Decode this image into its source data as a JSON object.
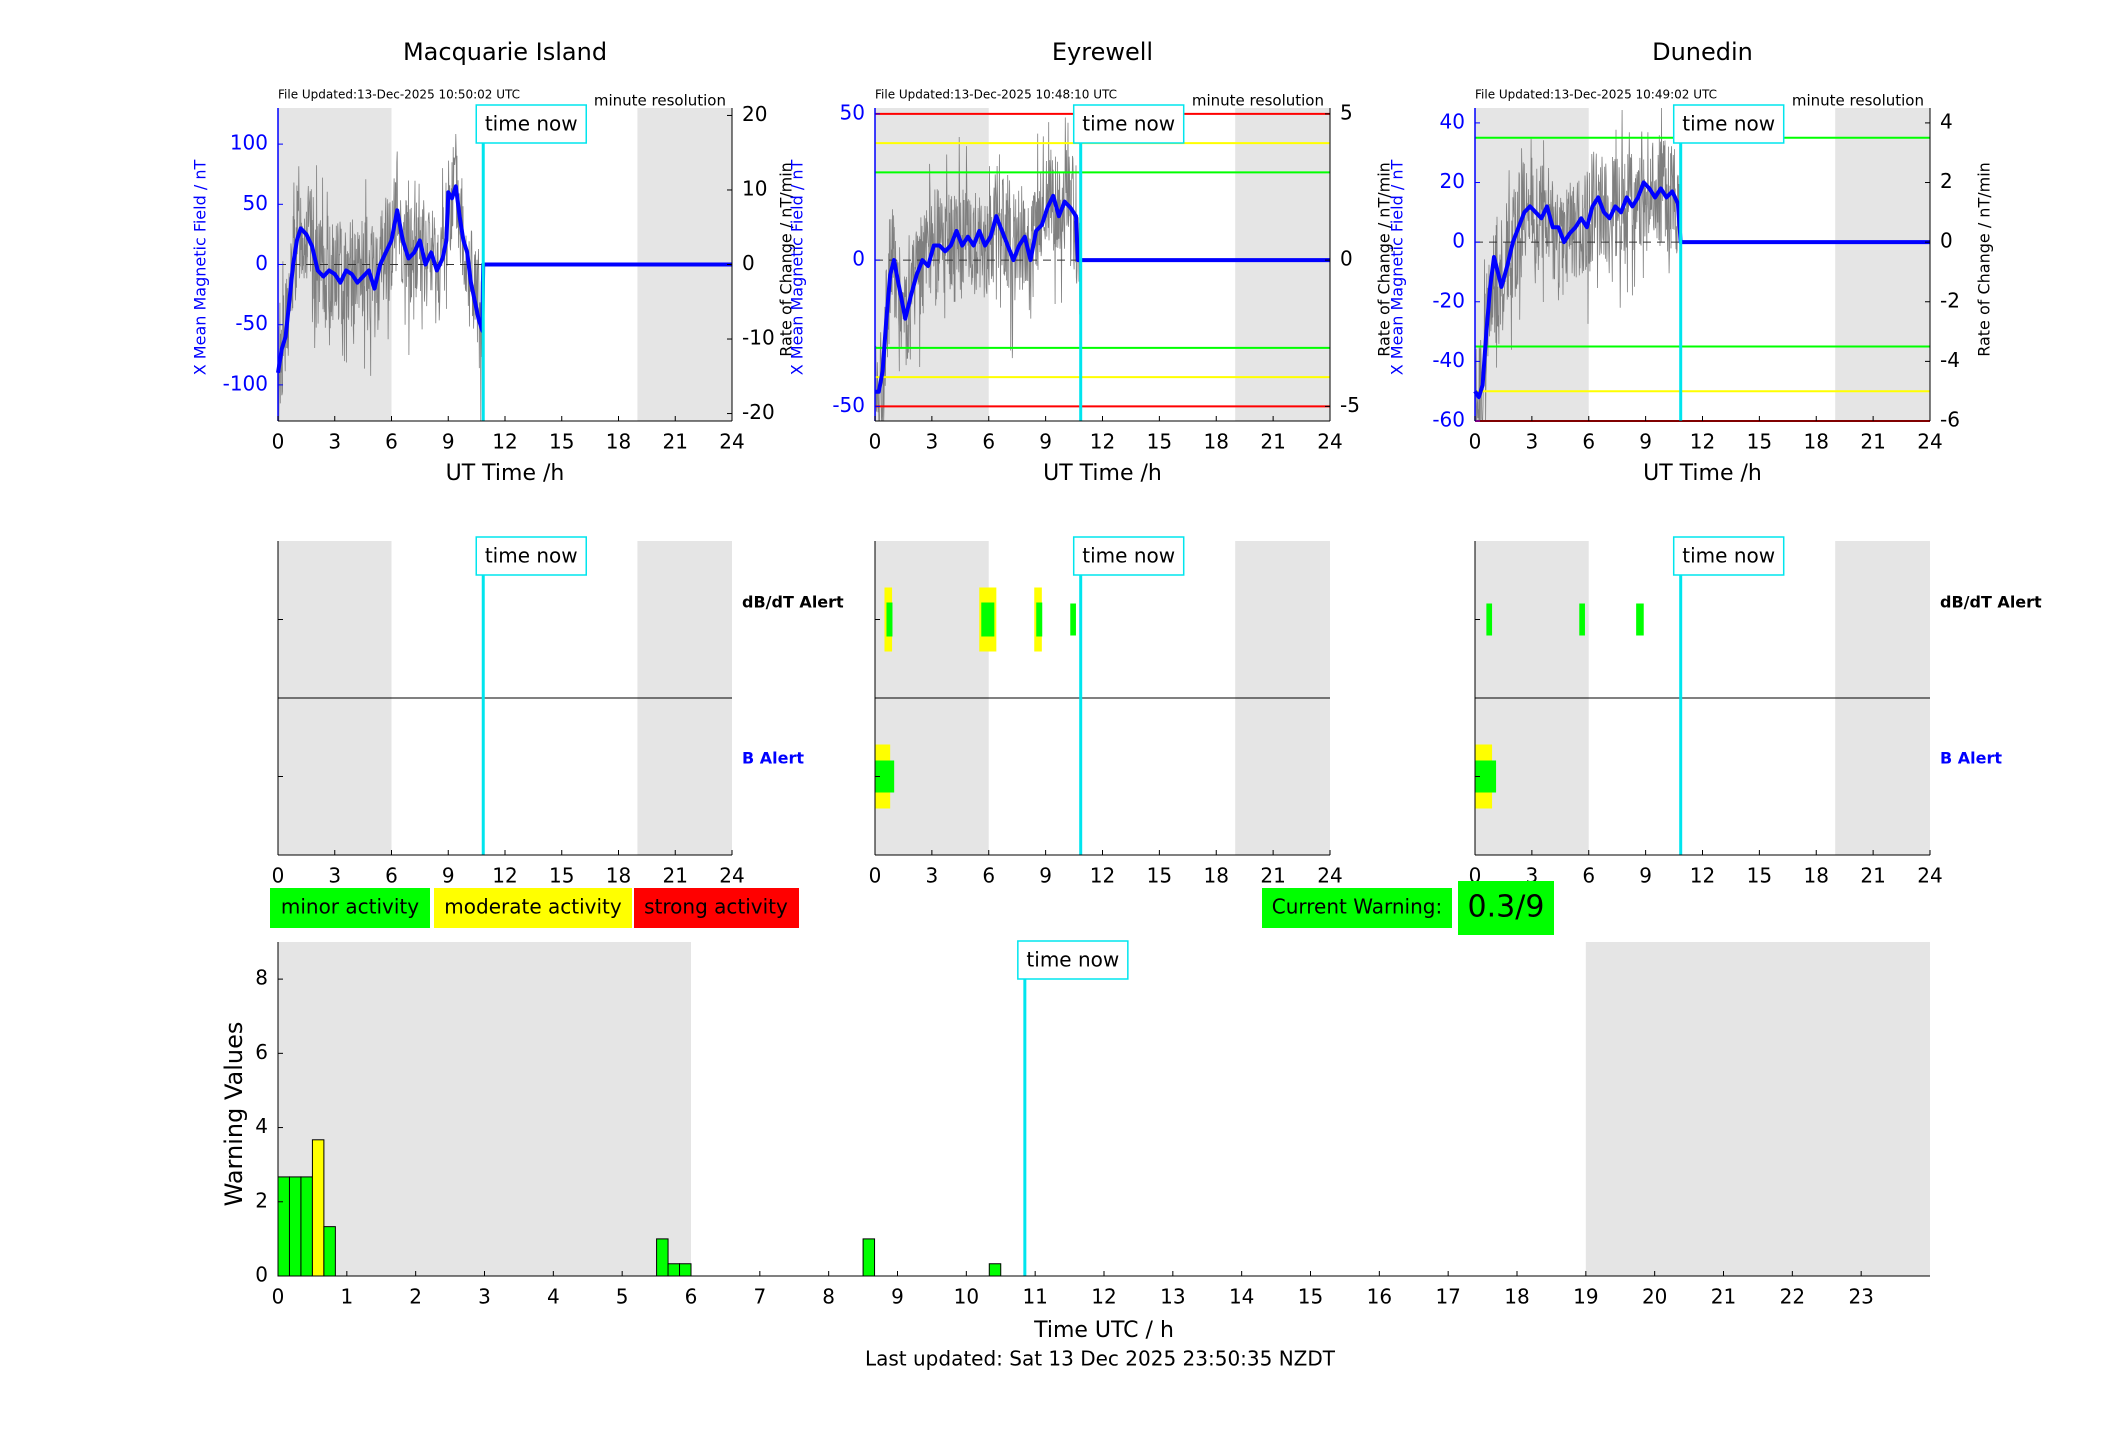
{
  "colors": {
    "blue": "#0000ff",
    "cyan": "#00e5ee",
    "green": "#00ff00",
    "yellow": "#ffff00",
    "red": "#ff0000",
    "night_shade": "#e5e5e5",
    "raw_trace": "#7f7f7f"
  },
  "common": {
    "time_now_label": "time now",
    "file_updated_prefix": "File Updated:",
    "resolution_label": "minute resolution",
    "x_axis_label": "UT Time /h",
    "left_axis_label": "X Mean Magnetic Field / nT",
    "right_axis_label": "Rate of Change / nT/min",
    "x_ticks": [
      "0",
      "3",
      "6",
      "9",
      "12",
      "15",
      "18",
      "21",
      "24"
    ],
    "dbdt_alert_label": "dB/dT Alert",
    "b_alert_label": "B Alert"
  },
  "legend": {
    "minor": "minor activity",
    "moderate": "moderate activity",
    "strong": "strong activity"
  },
  "current_warning": {
    "label": "Current Warning:",
    "value": "0.3/9"
  },
  "footer": {
    "last_updated": "Last updated: Sat 13 Dec 2025 23:50:35 NZDT"
  },
  "chart_data": [
    {
      "type": "line",
      "title": "Macquarie Island",
      "file_updated": "13-Dec-2025 10:50:02 UTC",
      "xlabel": "UT Time /h",
      "xlim": [
        0,
        24
      ],
      "ylim": [
        -130,
        130
      ],
      "y_ticks": [
        -100,
        -50,
        0,
        50,
        100
      ],
      "y2lim": [
        -21,
        21
      ],
      "y2_ticks": [
        -20,
        -10,
        0,
        10,
        20
      ],
      "now_hour": 10.85,
      "night_shading": [
        [
          0,
          6
        ],
        [
          19,
          24
        ]
      ],
      "thresholds": [],
      "mean_field_nT": {
        "hours": [
          0,
          0.2,
          0.4,
          0.6,
          0.8,
          1.0,
          1.2,
          1.5,
          1.8,
          2.1,
          2.4,
          2.7,
          3.0,
          3.3,
          3.6,
          3.9,
          4.2,
          4.5,
          4.8,
          5.1,
          5.4,
          5.7,
          6.0,
          6.3,
          6.6,
          6.9,
          7.2,
          7.5,
          7.8,
          8.1,
          8.4,
          8.7,
          8.9,
          9.0,
          9.2,
          9.4,
          9.6,
          9.8,
          10.0,
          10.2,
          10.4,
          10.6,
          10.8
        ],
        "values": [
          -90,
          -70,
          -60,
          -30,
          0,
          20,
          30,
          25,
          15,
          -5,
          -10,
          -5,
          -8,
          -15,
          -5,
          -8,
          -15,
          -10,
          -5,
          -20,
          0,
          10,
          20,
          45,
          20,
          5,
          10,
          20,
          0,
          10,
          -5,
          5,
          20,
          60,
          55,
          65,
          40,
          20,
          10,
          -15,
          -30,
          -45,
          -55
        ],
        "after_now_value": 0
      },
      "dbdt_alerts": [],
      "b_alerts": []
    },
    {
      "type": "line",
      "title": "Eyrewell",
      "file_updated": "13-Dec-2025 10:48:10 UTC",
      "xlabel": "UT Time /h",
      "xlim": [
        0,
        24
      ],
      "ylim": [
        -55,
        52
      ],
      "y_ticks": [
        -50,
        0,
        50
      ],
      "y2lim": [
        -5.5,
        5.2
      ],
      "y2_ticks": [
        -5,
        0,
        5
      ],
      "now_hour": 10.85,
      "night_shading": [
        [
          0,
          6
        ],
        [
          19,
          24
        ]
      ],
      "thresholds": [
        {
          "value": 50,
          "color": "red"
        },
        {
          "value": 40,
          "color": "yellow"
        },
        {
          "value": 30,
          "color": "green"
        },
        {
          "value": -30,
          "color": "green"
        },
        {
          "value": -40,
          "color": "yellow"
        },
        {
          "value": -50,
          "color": "red"
        }
      ],
      "mean_field_nT": {
        "hours": [
          0,
          0.2,
          0.4,
          0.6,
          0.8,
          1.0,
          1.3,
          1.6,
          1.9,
          2.2,
          2.5,
          2.8,
          3.1,
          3.4,
          3.7,
          4.0,
          4.3,
          4.6,
          4.9,
          5.2,
          5.5,
          5.8,
          6.1,
          6.4,
          6.7,
          7.0,
          7.3,
          7.6,
          7.9,
          8.2,
          8.5,
          8.8,
          9.1,
          9.4,
          9.7,
          10.0,
          10.3,
          10.6,
          10.7
        ],
        "values": [
          -45,
          -45,
          -38,
          -20,
          -5,
          0,
          -10,
          -20,
          -12,
          -5,
          0,
          -2,
          5,
          5,
          3,
          5,
          10,
          5,
          8,
          5,
          10,
          5,
          8,
          15,
          10,
          5,
          0,
          5,
          8,
          0,
          10,
          12,
          18,
          22,
          15,
          20,
          18,
          15,
          0
        ],
        "after_now_value": 0
      },
      "dbdt_alerts": [
        {
          "start": 0.5,
          "end": 0.9,
          "level": "moderate"
        },
        {
          "start": 5.5,
          "end": 6.4,
          "level": "moderate"
        },
        {
          "start": 8.4,
          "end": 8.8,
          "level": "moderate"
        },
        {
          "start": 10.3,
          "end": 10.6,
          "level": "minor"
        }
      ],
      "b_alerts": [
        {
          "start": 0,
          "end": 0.8,
          "level": "moderate"
        }
      ]
    },
    {
      "type": "line",
      "title": "Dunedin",
      "file_updated": "13-Dec-2025 10:49:02 UTC",
      "xlabel": "UT Time /h",
      "xlim": [
        0,
        24
      ],
      "ylim": [
        -60,
        45
      ],
      "y_ticks": [
        -60,
        -40,
        -20,
        0,
        20,
        40
      ],
      "y2lim": [
        -6,
        4.5
      ],
      "y2_ticks": [
        -6,
        -4,
        -2,
        0,
        2,
        4
      ],
      "now_hour": 10.85,
      "night_shading": [
        [
          0,
          6
        ],
        [
          19,
          24
        ]
      ],
      "thresholds": [
        {
          "value": 35,
          "color": "green"
        },
        {
          "value": -35,
          "color": "green"
        },
        {
          "value": -50,
          "color": "yellow"
        },
        {
          "value": -60,
          "color": "red"
        }
      ],
      "mean_field_nT": {
        "hours": [
          0,
          0.2,
          0.4,
          0.6,
          0.8,
          1.0,
          1.2,
          1.4,
          1.7,
          2.0,
          2.3,
          2.6,
          2.9,
          3.2,
          3.5,
          3.8,
          4.1,
          4.4,
          4.7,
          5.0,
          5.3,
          5.6,
          5.9,
          6.2,
          6.5,
          6.8,
          7.1,
          7.4,
          7.7,
          8.0,
          8.3,
          8.6,
          8.9,
          9.2,
          9.5,
          9.8,
          10.1,
          10.4,
          10.7
        ],
        "values": [
          -50,
          -52,
          -48,
          -30,
          -15,
          -5,
          -10,
          -15,
          -8,
          0,
          5,
          10,
          12,
          10,
          8,
          12,
          5,
          5,
          0,
          3,
          5,
          8,
          5,
          12,
          15,
          10,
          8,
          12,
          10,
          15,
          12,
          15,
          20,
          18,
          15,
          18,
          15,
          17,
          13
        ],
        "after_now_value": 0
      },
      "dbdt_alerts": [
        {
          "start": 0.6,
          "end": 0.9,
          "level": "minor"
        },
        {
          "start": 5.5,
          "end": 5.8,
          "level": "minor"
        },
        {
          "start": 8.5,
          "end": 8.9,
          "level": "minor"
        }
      ],
      "b_alerts": [
        {
          "start": 0,
          "end": 0.9,
          "level": "moderate"
        }
      ]
    },
    {
      "type": "bar",
      "title": "",
      "xlabel": "Time UTC / h",
      "ylabel": "Warning Values",
      "xlim": [
        0,
        24
      ],
      "ylim": [
        0,
        9
      ],
      "x_ticks": [
        "0",
        "1",
        "2",
        "3",
        "4",
        "5",
        "6",
        "7",
        "8",
        "9",
        "10",
        "11",
        "12",
        "13",
        "14",
        "15",
        "16",
        "17",
        "18",
        "19",
        "20",
        "21",
        "22",
        "23"
      ],
      "y_ticks": [
        "0",
        "2",
        "4",
        "6",
        "8"
      ],
      "now_hour": 10.85,
      "night_shading": [
        [
          0,
          6
        ],
        [
          19,
          24
        ]
      ],
      "bar_width_h": 0.1667,
      "bars": [
        {
          "start": 0.0,
          "value": 2.67,
          "level": "minor"
        },
        {
          "start": 0.1667,
          "value": 2.67,
          "level": "minor"
        },
        {
          "start": 0.3333,
          "value": 2.67,
          "level": "minor"
        },
        {
          "start": 0.5,
          "value": 3.67,
          "level": "moderate"
        },
        {
          "start": 0.6667,
          "value": 1.33,
          "level": "minor"
        },
        {
          "start": 5.5,
          "value": 1.0,
          "level": "minor"
        },
        {
          "start": 5.6667,
          "value": 0.33,
          "level": "minor"
        },
        {
          "start": 5.8333,
          "value": 0.33,
          "level": "minor"
        },
        {
          "start": 8.5,
          "value": 1.0,
          "level": "minor"
        },
        {
          "start": 10.3333,
          "value": 0.33,
          "level": "minor"
        }
      ]
    }
  ]
}
